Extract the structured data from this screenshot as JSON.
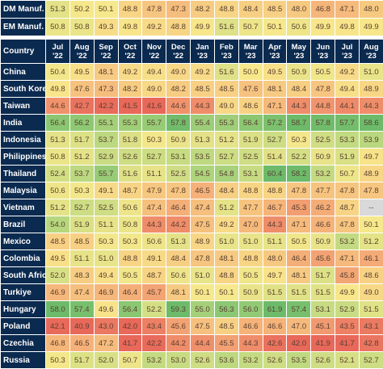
{
  "chart_data": {
    "type": "table",
    "header": {
      "country_label": "Country",
      "months": [
        {
          "m": "Jul",
          "y": "'22"
        },
        {
          "m": "Aug",
          "y": "'22"
        },
        {
          "m": "Sep",
          "y": "'22"
        },
        {
          "m": "Oct",
          "y": "'22"
        },
        {
          "m": "Nov",
          "y": "'22"
        },
        {
          "m": "Dec",
          "y": "'22"
        },
        {
          "m": "Jan",
          "y": "'23"
        },
        {
          "m": "Feb",
          "y": "'23"
        },
        {
          "m": "Mar",
          "y": "'23"
        },
        {
          "m": "Apr",
          "y": "'23"
        },
        {
          "m": "May",
          "y": "'23"
        },
        {
          "m": "Jun",
          "y": "'23"
        },
        {
          "m": "Jul",
          "y": "'23"
        },
        {
          "m": "Aug",
          "y": "'23"
        }
      ]
    },
    "summary_rows": [
      {
        "label": "DM Manuf.",
        "values": [
          "51.3",
          "50.2",
          "50.1",
          "48.8",
          "47.8",
          "47.3",
          "48.2",
          "48.8",
          "48.4",
          "48.5",
          "48.0",
          "46.8",
          "47.1",
          "48.0"
        ]
      },
      {
        "label": "EM Manuf.",
        "values": [
          "50.8",
          "50.8",
          "49.3",
          "49.8",
          "49.2",
          "48.8",
          "49.9",
          "51.6",
          "50.7",
          "50.1",
          "50.6",
          "49.9",
          "49.8",
          "49.9"
        ]
      }
    ],
    "rows": [
      {
        "label": "China",
        "values": [
          "50.4",
          "49.5",
          "48.1",
          "49.2",
          "49.4",
          "49.0",
          "49.2",
          "51.6",
          "50.0",
          "49.5",
          "50.9",
          "50.5",
          "49.2",
          "51.0"
        ]
      },
      {
        "label": "South Korea",
        "values": [
          "49.8",
          "47.6",
          "47.3",
          "48.2",
          "49.0",
          "48.2",
          "48.5",
          "48.5",
          "47.6",
          "48.1",
          "48.4",
          "47.8",
          "49.4",
          "48.9"
        ]
      },
      {
        "label": "Taiwan",
        "values": [
          "44.6",
          "42.7",
          "42.2",
          "41.5",
          "41.6",
          "44.6",
          "44.3",
          "49.0",
          "48.6",
          "47.1",
          "44.3",
          "44.8",
          "44.1",
          "44.3"
        ]
      },
      {
        "label": "India",
        "values": [
          "56.4",
          "56.2",
          "55.1",
          "55.3",
          "55.7",
          "57.8",
          "55.4",
          "55.3",
          "56.4",
          "57.2",
          "58.7",
          "57.8",
          "57.7",
          "58.6"
        ]
      },
      {
        "label": "Indonesia",
        "values": [
          "51.3",
          "51.7",
          "53.7",
          "51.8",
          "50.3",
          "50.9",
          "51.3",
          "51.2",
          "51.9",
          "52.7",
          "50.3",
          "52.5",
          "53.3",
          "53.9"
        ]
      },
      {
        "label": "Philippines",
        "values": [
          "50.8",
          "51.2",
          "52.9",
          "52.6",
          "52.7",
          "53.1",
          "53.5",
          "52.7",
          "52.5",
          "51.4",
          "52.2",
          "50.9",
          "51.9",
          "49.7"
        ]
      },
      {
        "label": "Thailand",
        "values": [
          "52.4",
          "53.7",
          "55.7",
          "51.6",
          "51.1",
          "52.5",
          "54.5",
          "54.8",
          "53.1",
          "60.4",
          "58.2",
          "53.2",
          "50.7",
          "48.9"
        ]
      },
      {
        "label": "Malaysia",
        "values": [
          "50.6",
          "50.3",
          "49.1",
          "48.7",
          "47.9",
          "47.8",
          "46.5",
          "48.4",
          "48.8",
          "48.8",
          "47.8",
          "47.7",
          "47.8",
          "47.8"
        ]
      },
      {
        "label": "Vietnam",
        "values": [
          "51.2",
          "52.7",
          "52.5",
          "50.6",
          "47.4",
          "46.4",
          "47.4",
          "51.2",
          "47.7",
          "46.7",
          "45.3",
          "46.2",
          "48.7",
          "--"
        ]
      },
      {
        "label": "Brazil",
        "values": [
          "54.0",
          "51.9",
          "51.1",
          "50.8",
          "44.3",
          "44.2",
          "47.5",
          "49.2",
          "47.0",
          "44.3",
          "47.1",
          "46.6",
          "47.8",
          "50.1"
        ]
      },
      {
        "label": "Mexico",
        "values": [
          "48.5",
          "48.5",
          "50.3",
          "50.3",
          "50.6",
          "51.3",
          "48.9",
          "51.0",
          "51.0",
          "51.1",
          "50.5",
          "50.9",
          "53.2",
          "51.2"
        ]
      },
      {
        "label": "Colombia",
        "values": [
          "49.5",
          "51.1",
          "51.0",
          "48.8",
          "49.1",
          "48.4",
          "47.8",
          "48.1",
          "48.8",
          "48.0",
          "46.4",
          "45.6",
          "47.1",
          "46.1"
        ]
      },
      {
        "label": "South Africa",
        "values": [
          "52.0",
          "48.3",
          "49.4",
          "50.5",
          "48.7",
          "50.6",
          "51.0",
          "48.8",
          "50.5",
          "49.7",
          "48.1",
          "51.7",
          "45.8",
          "48.6"
        ]
      },
      {
        "label": "Turkiye",
        "values": [
          "46.9",
          "47.4",
          "46.9",
          "46.4",
          "45.7",
          "48.1",
          "50.1",
          "50.1",
          "50.9",
          "51.5",
          "51.5",
          "51.5",
          "49.9",
          "49.0"
        ]
      },
      {
        "label": "Hungary",
        "values": [
          "58.0",
          "57.4",
          "49.6",
          "56.4",
          "52.2",
          "59.3",
          "55.0",
          "56.3",
          "56.0",
          "61.9",
          "57.4",
          "53.1",
          "52.9",
          "51.5"
        ]
      },
      {
        "label": "Poland",
        "values": [
          "42.1",
          "40.9",
          "43.0",
          "42.0",
          "43.4",
          "45.6",
          "47.5",
          "48.5",
          "46.6",
          "46.6",
          "47.0",
          "45.1",
          "43.5",
          "43.1"
        ]
      },
      {
        "label": "Czechia",
        "values": [
          "46.8",
          "46.5",
          "47.2",
          "41.7",
          "42.2",
          "44.2",
          "44.4",
          "45.5",
          "44.3",
          "42.6",
          "42.0",
          "41.9",
          "41.7",
          "42.8"
        ]
      },
      {
        "label": "Russia",
        "values": [
          "50.3",
          "51.7",
          "52.0",
          "50.7",
          "53.2",
          "53.0",
          "52.6",
          "53.6",
          "53.2",
          "52.6",
          "53.5",
          "52.6",
          "52.1",
          "52.7"
        ]
      }
    ],
    "colors": {
      "header_bg": "#0b2a4f",
      "header_text": "#ffffff",
      "na_bg": "#d9d9d9",
      "scale": [
        "#e8685a",
        "#f4a976",
        "#f8e88c",
        "#b7d77f",
        "#6dbb6a"
      ]
    }
  }
}
